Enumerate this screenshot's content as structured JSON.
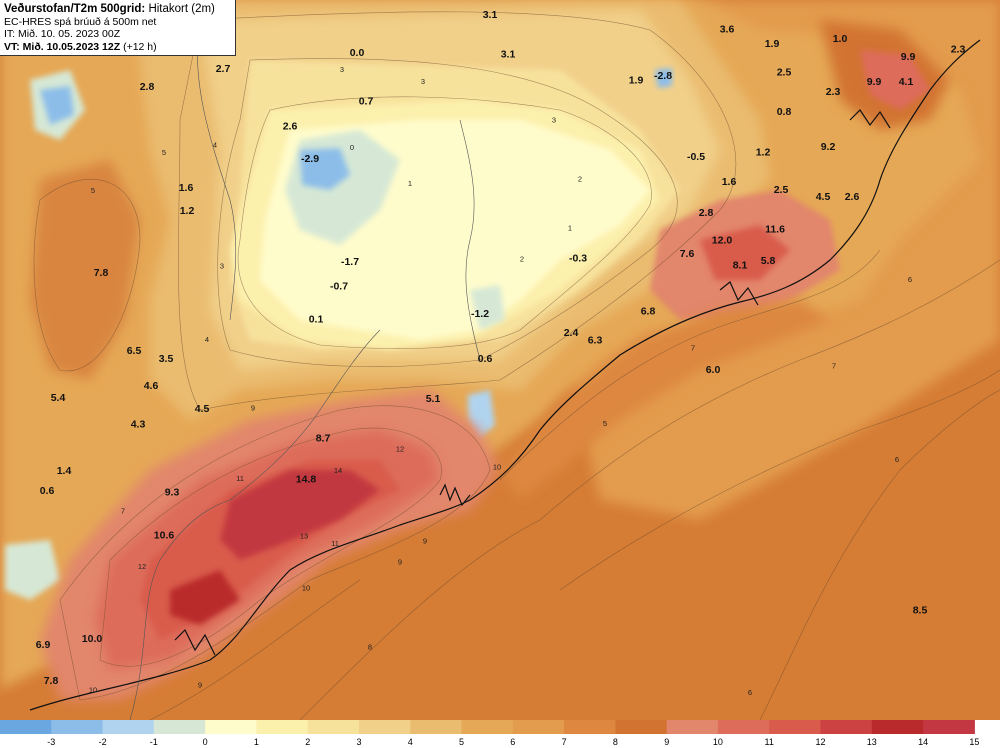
{
  "header": {
    "title": "Veðurstofan/T2m 500grid:",
    "subtitle": "Hitakort (2m)",
    "model": "EC-HRES spá brúuð á 500m net",
    "init_time": "IT: Mið. 10. 05. 2023 00Z",
    "valid_time": "VT: Mið. 10.05.2023 12Z",
    "lead": "(+12 h)"
  },
  "station_values": [
    {
      "label": "3.1",
      "lon": 0.49,
      "lat": 0.025
    },
    {
      "label": "3.6",
      "lon": 0.727,
      "lat": 0.045
    },
    {
      "label": "1.9",
      "lon": 0.772,
      "lat": 0.065
    },
    {
      "label": "1.0",
      "lon": 0.84,
      "lat": 0.058
    },
    {
      "label": "2.3",
      "lon": 0.958,
      "lat": 0.073
    },
    {
      "label": "9.9",
      "lon": 0.908,
      "lat": 0.083
    },
    {
      "label": "0.0",
      "lon": 0.357,
      "lat": 0.078
    },
    {
      "label": "3.1",
      "lon": 0.508,
      "lat": 0.08
    },
    {
      "label": "2.7",
      "lon": 0.223,
      "lat": 0.1
    },
    {
      "label": "1.9",
      "lon": 0.636,
      "lat": 0.116
    },
    {
      "label": "-2.8",
      "lon": 0.663,
      "lat": 0.11
    },
    {
      "label": "2.5",
      "lon": 0.784,
      "lat": 0.105
    },
    {
      "label": "4.1",
      "lon": 0.906,
      "lat": 0.118
    },
    {
      "label": "9.9",
      "lon": 0.874,
      "lat": 0.118
    },
    {
      "label": "2.8",
      "lon": 0.147,
      "lat": 0.125
    },
    {
      "label": "2.3",
      "lon": 0.833,
      "lat": 0.132
    },
    {
      "label": "0.7",
      "lon": 0.366,
      "lat": 0.145
    },
    {
      "label": "0.8",
      "lon": 0.784,
      "lat": 0.16
    },
    {
      "label": "2.6",
      "lon": 0.29,
      "lat": 0.18
    },
    {
      "label": "9.2",
      "lon": 0.828,
      "lat": 0.208
    },
    {
      "label": "-2.9",
      "lon": 0.31,
      "lat": 0.225
    },
    {
      "label": "-0.5",
      "lon": 0.696,
      "lat": 0.222
    },
    {
      "label": "1.2",
      "lon": 0.763,
      "lat": 0.216
    },
    {
      "label": "1.6",
      "lon": 0.186,
      "lat": 0.265
    },
    {
      "label": "1.6",
      "lon": 0.729,
      "lat": 0.257
    },
    {
      "label": "2.5",
      "lon": 0.781,
      "lat": 0.268
    },
    {
      "label": "4.5",
      "lon": 0.823,
      "lat": 0.278
    },
    {
      "label": "2.6",
      "lon": 0.852,
      "lat": 0.278
    },
    {
      "label": "1.2",
      "lon": 0.187,
      "lat": 0.297
    },
    {
      "label": "2.8",
      "lon": 0.706,
      "lat": 0.3
    },
    {
      "label": "11.6",
      "lon": 0.775,
      "lat": 0.323
    },
    {
      "label": "12.0",
      "lon": 0.722,
      "lat": 0.338
    },
    {
      "label": "7.6",
      "lon": 0.687,
      "lat": 0.357
    },
    {
      "label": "5.8",
      "lon": 0.768,
      "lat": 0.367
    },
    {
      "label": "8.1",
      "lon": 0.74,
      "lat": 0.373
    },
    {
      "label": "-1.7",
      "lon": 0.35,
      "lat": 0.368
    },
    {
      "label": "-0.3",
      "lon": 0.578,
      "lat": 0.363
    },
    {
      "label": "7.8",
      "lon": 0.101,
      "lat": 0.383
    },
    {
      "label": "-0.7",
      "lon": 0.339,
      "lat": 0.402
    },
    {
      "label": "6.8",
      "lon": 0.648,
      "lat": 0.437
    },
    {
      "label": "-1.2",
      "lon": 0.48,
      "lat": 0.44
    },
    {
      "label": "0.1",
      "lon": 0.316,
      "lat": 0.448
    },
    {
      "label": "2.4",
      "lon": 0.571,
      "lat": 0.467
    },
    {
      "label": "6.3",
      "lon": 0.595,
      "lat": 0.477
    },
    {
      "label": "6.5",
      "lon": 0.134,
      "lat": 0.492
    },
    {
      "label": "0.6",
      "lon": 0.485,
      "lat": 0.503
    },
    {
      "label": "3.5",
      "lon": 0.166,
      "lat": 0.503
    },
    {
      "label": "6.0",
      "lon": 0.713,
      "lat": 0.518
    },
    {
      "label": "4.6",
      "lon": 0.151,
      "lat": 0.54
    },
    {
      "label": "5.4",
      "lon": 0.058,
      "lat": 0.557
    },
    {
      "label": "5.1",
      "lon": 0.433,
      "lat": 0.558
    },
    {
      "label": "4.5",
      "lon": 0.202,
      "lat": 0.572
    },
    {
      "label": "4.3",
      "lon": 0.138,
      "lat": 0.594
    },
    {
      "label": "8.7",
      "lon": 0.323,
      "lat": 0.613
    },
    {
      "label": "1.4",
      "lon": 0.064,
      "lat": 0.658
    },
    {
      "label": "14.8",
      "lon": 0.306,
      "lat": 0.67
    },
    {
      "label": "9.3",
      "lon": 0.172,
      "lat": 0.688
    },
    {
      "label": "0.6",
      "lon": 0.047,
      "lat": 0.686
    },
    {
      "label": "10.6",
      "lon": 0.164,
      "lat": 0.748
    },
    {
      "label": "8.5",
      "lon": 0.92,
      "lat": 0.852
    },
    {
      "label": "10.0",
      "lon": 0.092,
      "lat": 0.892
    },
    {
      "label": "6.9",
      "lon": 0.043,
      "lat": 0.9
    },
    {
      "label": "7.8",
      "lon": 0.051,
      "lat": 0.95
    }
  ],
  "contour_labels": [
    {
      "label": "3",
      "lon": 0.342,
      "lat": 0.1
    },
    {
      "label": "3",
      "lon": 0.423,
      "lat": 0.117
    },
    {
      "label": "5",
      "lon": 0.164,
      "lat": 0.215
    },
    {
      "label": "4",
      "lon": 0.215,
      "lat": 0.205
    },
    {
      "label": "1",
      "lon": 0.41,
      "lat": 0.258
    },
    {
      "label": "2",
      "lon": 0.58,
      "lat": 0.252
    },
    {
      "label": "3",
      "lon": 0.554,
      "lat": 0.17
    },
    {
      "label": "0",
      "lon": 0.352,
      "lat": 0.208
    },
    {
      "label": "1",
      "lon": 0.57,
      "lat": 0.32
    },
    {
      "label": "2",
      "lon": 0.522,
      "lat": 0.363
    },
    {
      "label": "3",
      "lon": 0.222,
      "lat": 0.373
    },
    {
      "label": "4",
      "lon": 0.207,
      "lat": 0.475
    },
    {
      "label": "5",
      "lon": 0.093,
      "lat": 0.268
    },
    {
      "label": "7",
      "lon": 0.693,
      "lat": 0.487
    },
    {
      "label": "7",
      "lon": 0.834,
      "lat": 0.512
    },
    {
      "label": "6",
      "lon": 0.91,
      "lat": 0.392
    },
    {
      "label": "6",
      "lon": 0.897,
      "lat": 0.642
    },
    {
      "label": "5",
      "lon": 0.605,
      "lat": 0.592
    },
    {
      "label": "6",
      "lon": 0.75,
      "lat": 0.965
    },
    {
      "label": "8",
      "lon": 0.37,
      "lat": 0.902
    },
    {
      "label": "9",
      "lon": 0.4,
      "lat": 0.784
    },
    {
      "label": "9",
      "lon": 0.253,
      "lat": 0.57
    },
    {
      "label": "10",
      "lon": 0.306,
      "lat": 0.82
    },
    {
      "label": "11",
      "lon": 0.335,
      "lat": 0.758
    },
    {
      "label": "12",
      "lon": 0.4,
      "lat": 0.627
    },
    {
      "label": "14",
      "lon": 0.338,
      "lat": 0.657
    },
    {
      "label": "13",
      "lon": 0.304,
      "lat": 0.748
    },
    {
      "label": "11",
      "lon": 0.24,
      "lat": 0.668
    },
    {
      "label": "12",
      "lon": 0.142,
      "lat": 0.79
    },
    {
      "label": "7",
      "lon": 0.123,
      "lat": 0.713
    },
    {
      "label": "10",
      "lon": 0.497,
      "lat": 0.652
    },
    {
      "label": "9",
      "lon": 0.425,
      "lat": 0.755
    },
    {
      "label": "10",
      "lon": 0.093,
      "lat": 0.962
    },
    {
      "label": "9",
      "lon": 0.2,
      "lat": 0.955
    }
  ],
  "legend": {
    "ticks": [
      "-3",
      "-2",
      "-1",
      "0",
      "1",
      "2",
      "3",
      "4",
      "5",
      "6",
      "7",
      "8",
      "9",
      "10",
      "11",
      "12",
      "13",
      "14",
      "15"
    ],
    "colors": [
      "#6aa6e0",
      "#8cbde9",
      "#b0d4f0",
      "#d6e8d5",
      "#fffccc",
      "#fcf0ad",
      "#f7e29c",
      "#f1d08a",
      "#eabc6f",
      "#e5a856",
      "#e39b4e",
      "#dd8740",
      "#d27332",
      "#e2866c",
      "#dd6c5a",
      "#d95b4c",
      "#cc4141",
      "#b92a2c",
      "#c23741"
    ]
  }
}
